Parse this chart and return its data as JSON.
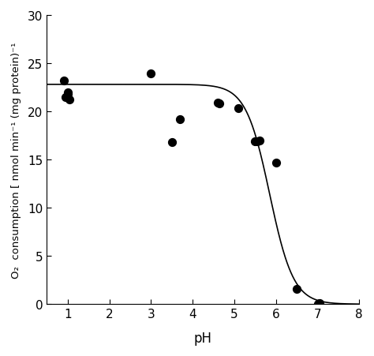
{
  "scatter_x": [
    0.9,
    0.95,
    1.0,
    1.0,
    1.05,
    3.0,
    3.5,
    3.7,
    4.6,
    4.65,
    5.1,
    5.5,
    5.55,
    5.6,
    6.0,
    6.5,
    7.0,
    7.05
  ],
  "scatter_y": [
    23.2,
    21.5,
    21.8,
    22.0,
    21.2,
    23.9,
    16.8,
    19.2,
    20.9,
    20.8,
    20.3,
    16.9,
    16.9,
    17.0,
    14.7,
    1.6,
    0.0,
    0.1
  ],
  "xlabel": "pH",
  "ylabel_line1": "O₂  consumption [ nmol min⁻¹ (mg protein)⁻¹",
  "xlim": [
    0.5,
    8.0
  ],
  "ylim": [
    0,
    30
  ],
  "xticks": [
    1,
    2,
    3,
    4,
    5,
    6,
    7,
    8
  ],
  "yticks": [
    0,
    5,
    10,
    15,
    20,
    25,
    30
  ],
  "curve_color": "#000000",
  "scatter_color": "#000000",
  "background_color": "#ffffff",
  "sigmoid_Vmax": 22.8,
  "sigmoid_k": 3.5,
  "sigmoid_x0": 5.85
}
